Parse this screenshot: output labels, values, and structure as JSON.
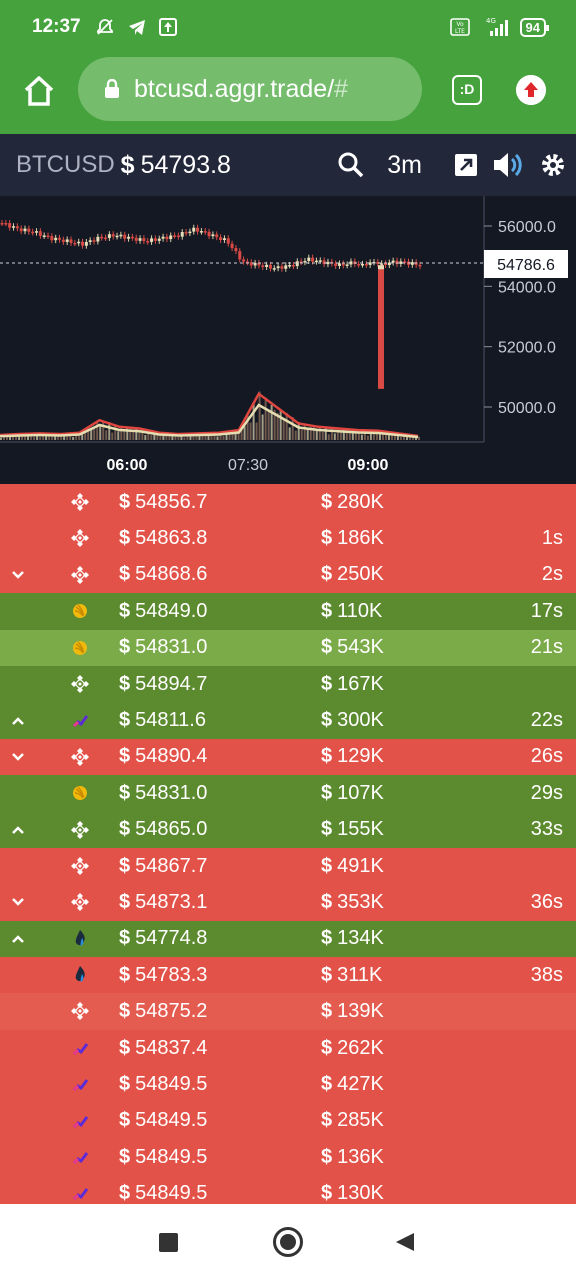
{
  "status_bar": {
    "time": "12:37",
    "battery": "94",
    "icons": [
      "mute-icon",
      "telegram-icon",
      "upload-icon",
      "volte-icon",
      "signal-icon"
    ]
  },
  "browser": {
    "url_main": "btcusd.aggr.trade/",
    "url_hash": "#",
    "tab_label": ":D"
  },
  "header": {
    "pair": "BTCUSD",
    "price": "54793.8",
    "timeframe": "3m"
  },
  "chart_data": {
    "type": "candlestick",
    "price_axis": {
      "ticks": [
        "56000.0",
        "54000.0",
        "52000.0",
        "50000.0"
      ],
      "current_label": "54786.6",
      "range": [
        49000,
        57000
      ]
    },
    "time_axis": {
      "ticks": [
        "06:00",
        "07:30",
        "09:00"
      ]
    },
    "price_line": [
      56100,
      55900,
      55800,
      55600,
      55500,
      55400,
      55600,
      55700,
      55600,
      55500,
      55600,
      55700,
      55900,
      55700,
      55500,
      54800,
      54700,
      54600,
      54700,
      54900,
      54800,
      54700,
      54800,
      50600,
      54800,
      54800,
      54700
    ],
    "spike_low": 50600,
    "volume_line": [
      15,
      18,
      20,
      18,
      22,
      60,
      40,
      35,
      22,
      18,
      20,
      22,
      30,
      140,
      95,
      50,
      40,
      35,
      30,
      28,
      20,
      12
    ]
  },
  "colors": {
    "sell": "#e35248",
    "sell_alt": "#e45b50",
    "buy": "#5c8a2e",
    "buy_light": "#7aab48",
    "chart_bg": "#141823",
    "header_bg": "#22273a",
    "android_green": "#45a23d"
  },
  "trades": [
    {
      "side": "sell",
      "arrow": "",
      "exchange": "binance-icon",
      "price": "54856.7",
      "amount": "280K",
      "age": ""
    },
    {
      "side": "sell",
      "arrow": "",
      "exchange": "binance-icon",
      "price": "54863.8",
      "amount": "186K",
      "age": "1s"
    },
    {
      "side": "sell",
      "arrow": "down",
      "exchange": "binance-icon",
      "price": "54868.6",
      "amount": "250K",
      "age": "2s"
    },
    {
      "side": "buy",
      "arrow": "",
      "exchange": "bitmex-icon",
      "price": "54849.0",
      "amount": "110K",
      "age": "17s"
    },
    {
      "side": "buy_light",
      "arrow": "",
      "exchange": "bitmex-icon",
      "price": "54831.0",
      "amount": "543K",
      "age": "21s"
    },
    {
      "side": "buy",
      "arrow": "",
      "exchange": "binance-icon",
      "price": "54894.7",
      "amount": "167K",
      "age": ""
    },
    {
      "side": "buy",
      "arrow": "up",
      "exchange": "ftx-icon",
      "price": "54811.6",
      "amount": "300K",
      "age": "22s"
    },
    {
      "side": "sell",
      "arrow": "down",
      "exchange": "binance-icon",
      "price": "54890.4",
      "amount": "129K",
      "age": "26s"
    },
    {
      "side": "buy",
      "arrow": "",
      "exchange": "bitmex-icon",
      "price": "54831.0",
      "amount": "107K",
      "age": "29s"
    },
    {
      "side": "buy",
      "arrow": "up",
      "exchange": "binance-icon",
      "price": "54865.0",
      "amount": "155K",
      "age": "33s"
    },
    {
      "side": "sell",
      "arrow": "",
      "exchange": "binance-icon",
      "price": "54867.7",
      "amount": "491K",
      "age": ""
    },
    {
      "side": "sell",
      "arrow": "down",
      "exchange": "binance-icon",
      "price": "54873.1",
      "amount": "353K",
      "age": "36s"
    },
    {
      "side": "buy",
      "arrow": "up",
      "exchange": "huobi-icon",
      "price": "54774.8",
      "amount": "134K",
      "age": ""
    },
    {
      "side": "sell",
      "arrow": "",
      "exchange": "huobi-icon",
      "price": "54783.3",
      "amount": "311K",
      "age": "38s"
    },
    {
      "side": "sell_alt",
      "arrow": "",
      "exchange": "binance-icon",
      "price": "54875.2",
      "amount": "139K",
      "age": ""
    },
    {
      "side": "sell",
      "arrow": "",
      "exchange": "ftx-icon",
      "price": "54837.4",
      "amount": "262K",
      "age": ""
    },
    {
      "side": "sell",
      "arrow": "",
      "exchange": "ftx-icon",
      "price": "54849.5",
      "amount": "427K",
      "age": ""
    },
    {
      "side": "sell",
      "arrow": "",
      "exchange": "ftx-icon",
      "price": "54849.5",
      "amount": "285K",
      "age": ""
    },
    {
      "side": "sell",
      "arrow": "",
      "exchange": "ftx-icon",
      "price": "54849.5",
      "amount": "136K",
      "age": ""
    },
    {
      "side": "sell",
      "arrow": "",
      "exchange": "ftx-icon",
      "price": "54849.5",
      "amount": "130K",
      "age": ""
    }
  ]
}
